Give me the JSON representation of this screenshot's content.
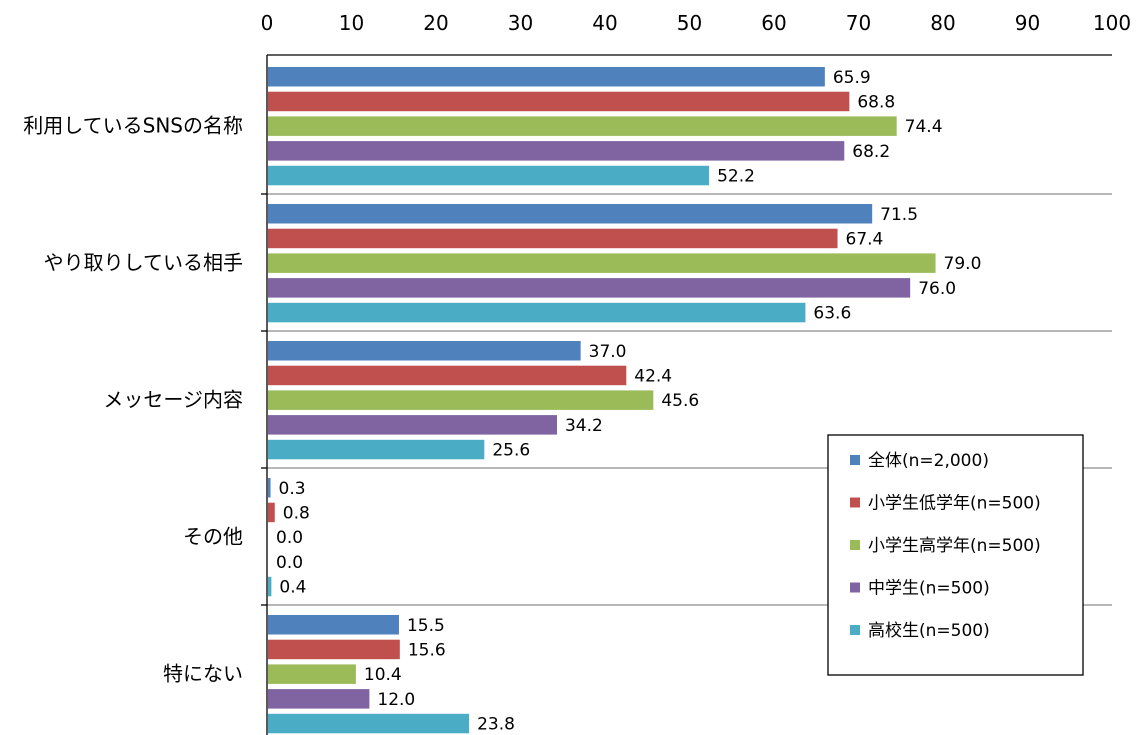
{
  "chart_data": {
    "type": "bar",
    "orientation": "horizontal",
    "categories": [
      "利用しているSNSの名称",
      "やり取りしている相手",
      "メッセージ内容",
      "その他",
      "特にない"
    ],
    "series": [
      {
        "name": "全体(n=2,000)",
        "color": "#4f81bd",
        "values": [
          65.9,
          71.5,
          37.0,
          0.3,
          15.5
        ]
      },
      {
        "name": "小学生低学年(n=500)",
        "color": "#c0504d",
        "values": [
          68.8,
          67.4,
          42.4,
          0.8,
          15.6
        ]
      },
      {
        "name": "小学生高学年(n=500)",
        "color": "#9bbb59",
        "values": [
          74.4,
          79.0,
          45.6,
          0.0,
          10.4
        ]
      },
      {
        "name": "中学生(n=500)",
        "color": "#8064a2",
        "values": [
          68.2,
          76.0,
          34.2,
          0.0,
          12.0
        ]
      },
      {
        "name": "高校生(n=500)",
        "color": "#4bacc6",
        "values": [
          52.2,
          63.6,
          25.6,
          0.4,
          23.8
        ]
      }
    ],
    "xlim": [
      0,
      100
    ],
    "ticks": [
      "0",
      "10",
      "20",
      "30",
      "40",
      "50",
      "60",
      "70",
      "80",
      "90",
      "100"
    ],
    "axis_position": "top",
    "grid": false,
    "legend_position": "lower-right",
    "value_format": "one-decimal"
  }
}
